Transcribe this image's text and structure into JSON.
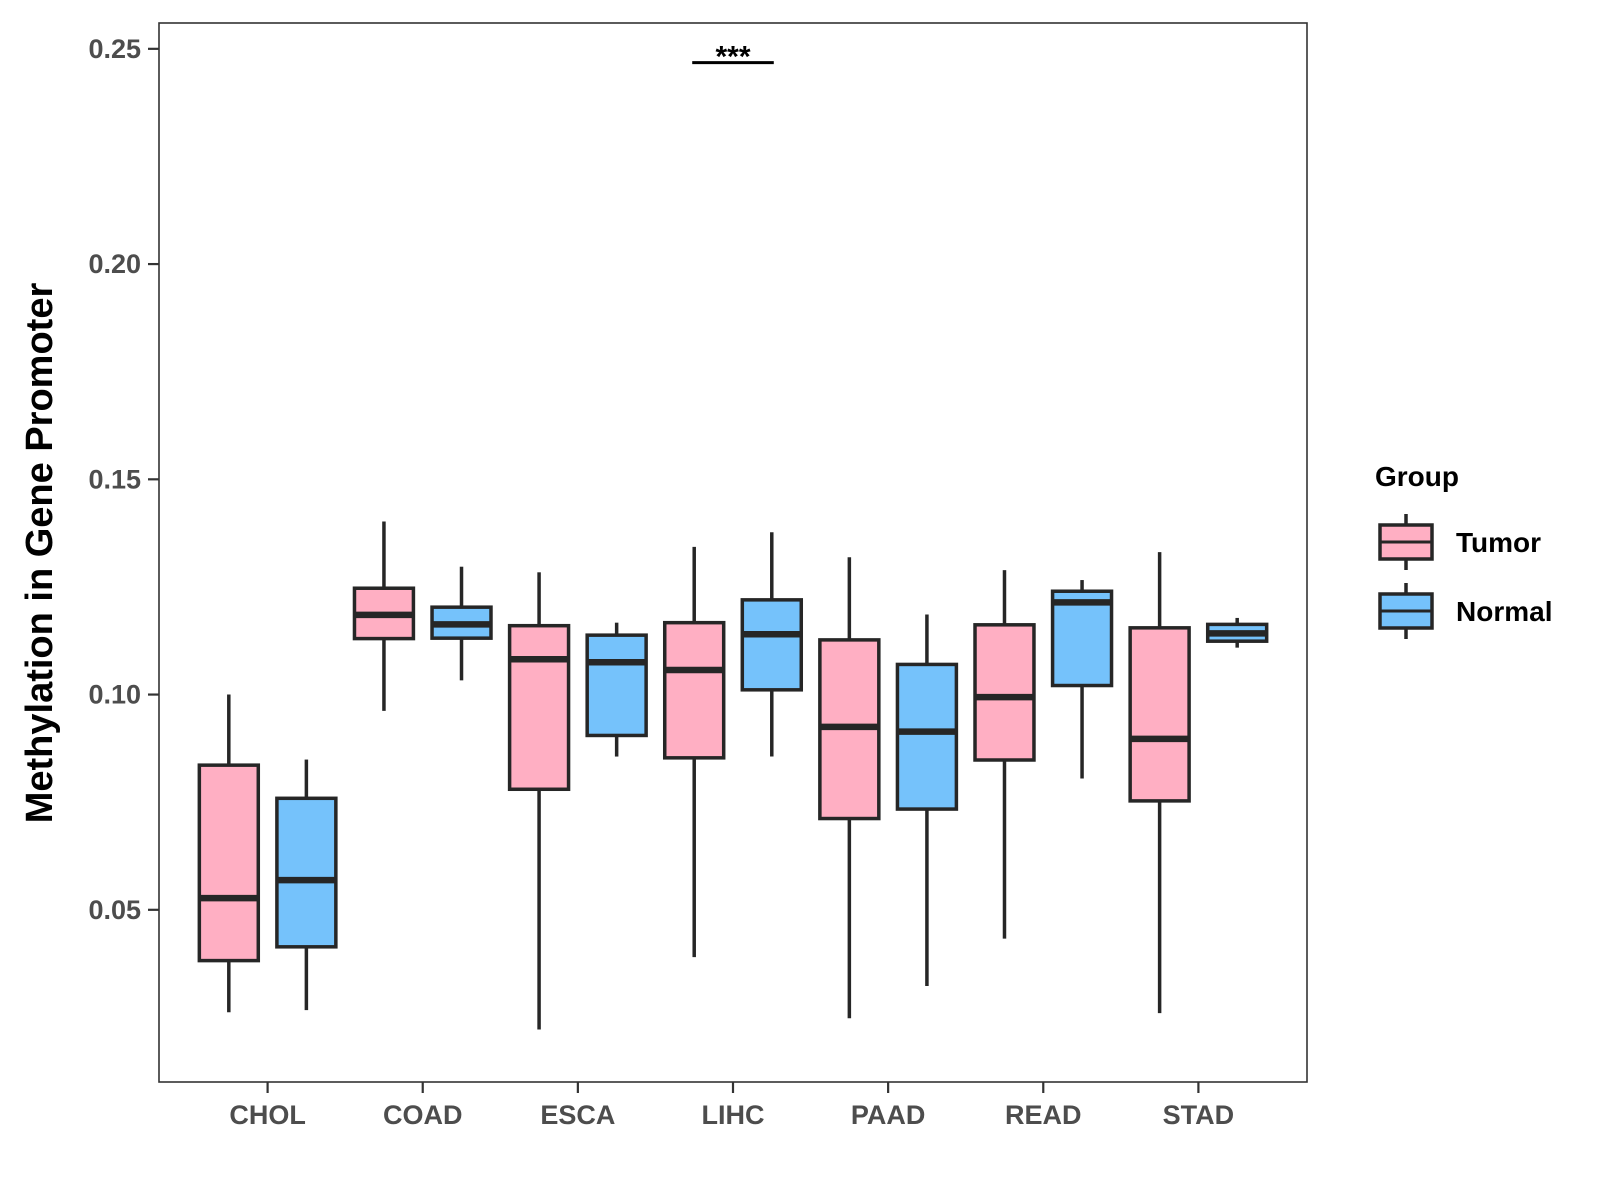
{
  "chart_data": {
    "type": "boxplot",
    "title": "",
    "xlabel": "",
    "ylabel": "Methylation in Gene Promoter",
    "ylim": [
      0.01,
      0.256
    ],
    "yticks": [
      0.05,
      0.1,
      0.15,
      0.2,
      0.25
    ],
    "ytick_labels": [
      "0.05",
      "0.10",
      "0.15",
      "0.20",
      "0.25"
    ],
    "categories": [
      "CHOL",
      "COAD",
      "ESCA",
      "LIHC",
      "PAAD",
      "READ",
      "STAD"
    ],
    "grid": false,
    "legend": {
      "title": "Group",
      "position": "right",
      "entries": [
        {
          "name": "Tumor",
          "color": "#ffafc3"
        },
        {
          "name": "Normal",
          "color": "#75c2fb"
        }
      ]
    },
    "series": [
      {
        "name": "Tumor",
        "color": "#ffafc3",
        "boxes": [
          {
            "min": 0.0262,
            "q1": 0.0382,
            "median": 0.0527,
            "q3": 0.0836,
            "max": 0.1
          },
          {
            "min": 0.0962,
            "q1": 0.113,
            "median": 0.1185,
            "q3": 0.1247,
            "max": 0.1402
          },
          {
            "min": 0.0222,
            "q1": 0.078,
            "median": 0.1082,
            "q3": 0.116,
            "max": 0.1284
          },
          {
            "min": 0.039,
            "q1": 0.0853,
            "median": 0.1057,
            "q3": 0.1167,
            "max": 0.1343
          },
          {
            "min": 0.0248,
            "q1": 0.0712,
            "median": 0.0925,
            "q3": 0.1127,
            "max": 0.1319
          },
          {
            "min": 0.0433,
            "q1": 0.0848,
            "median": 0.0994,
            "q3": 0.1162,
            "max": 0.1289
          },
          {
            "min": 0.026,
            "q1": 0.0753,
            "median": 0.0897,
            "q3": 0.1155,
            "max": 0.1331
          }
        ]
      },
      {
        "name": "Normal",
        "color": "#75c2fb",
        "boxes": [
          {
            "min": 0.0267,
            "q1": 0.0414,
            "median": 0.0569,
            "q3": 0.0759,
            "max": 0.0849
          },
          {
            "min": 0.1033,
            "q1": 0.1131,
            "median": 0.1163,
            "q3": 0.1203,
            "max": 0.1297
          },
          {
            "min": 0.0856,
            "q1": 0.0905,
            "median": 0.1075,
            "q3": 0.1138,
            "max": 0.1167
          },
          {
            "min": 0.0856,
            "q1": 0.1011,
            "median": 0.114,
            "q3": 0.122,
            "max": 0.1377
          },
          {
            "min": 0.0323,
            "q1": 0.0734,
            "median": 0.0914,
            "q3": 0.107,
            "max": 0.1186
          },
          {
            "min": 0.0805,
            "q1": 0.1021,
            "median": 0.1214,
            "q3": 0.124,
            "max": 0.1266
          },
          {
            "min": 0.1109,
            "q1": 0.1124,
            "median": 0.1142,
            "q3": 0.1163,
            "max": 0.1178
          }
        ]
      }
    ],
    "annotations": [
      {
        "text": "***",
        "category": "LIHC",
        "y": 0.2468
      }
    ]
  }
}
